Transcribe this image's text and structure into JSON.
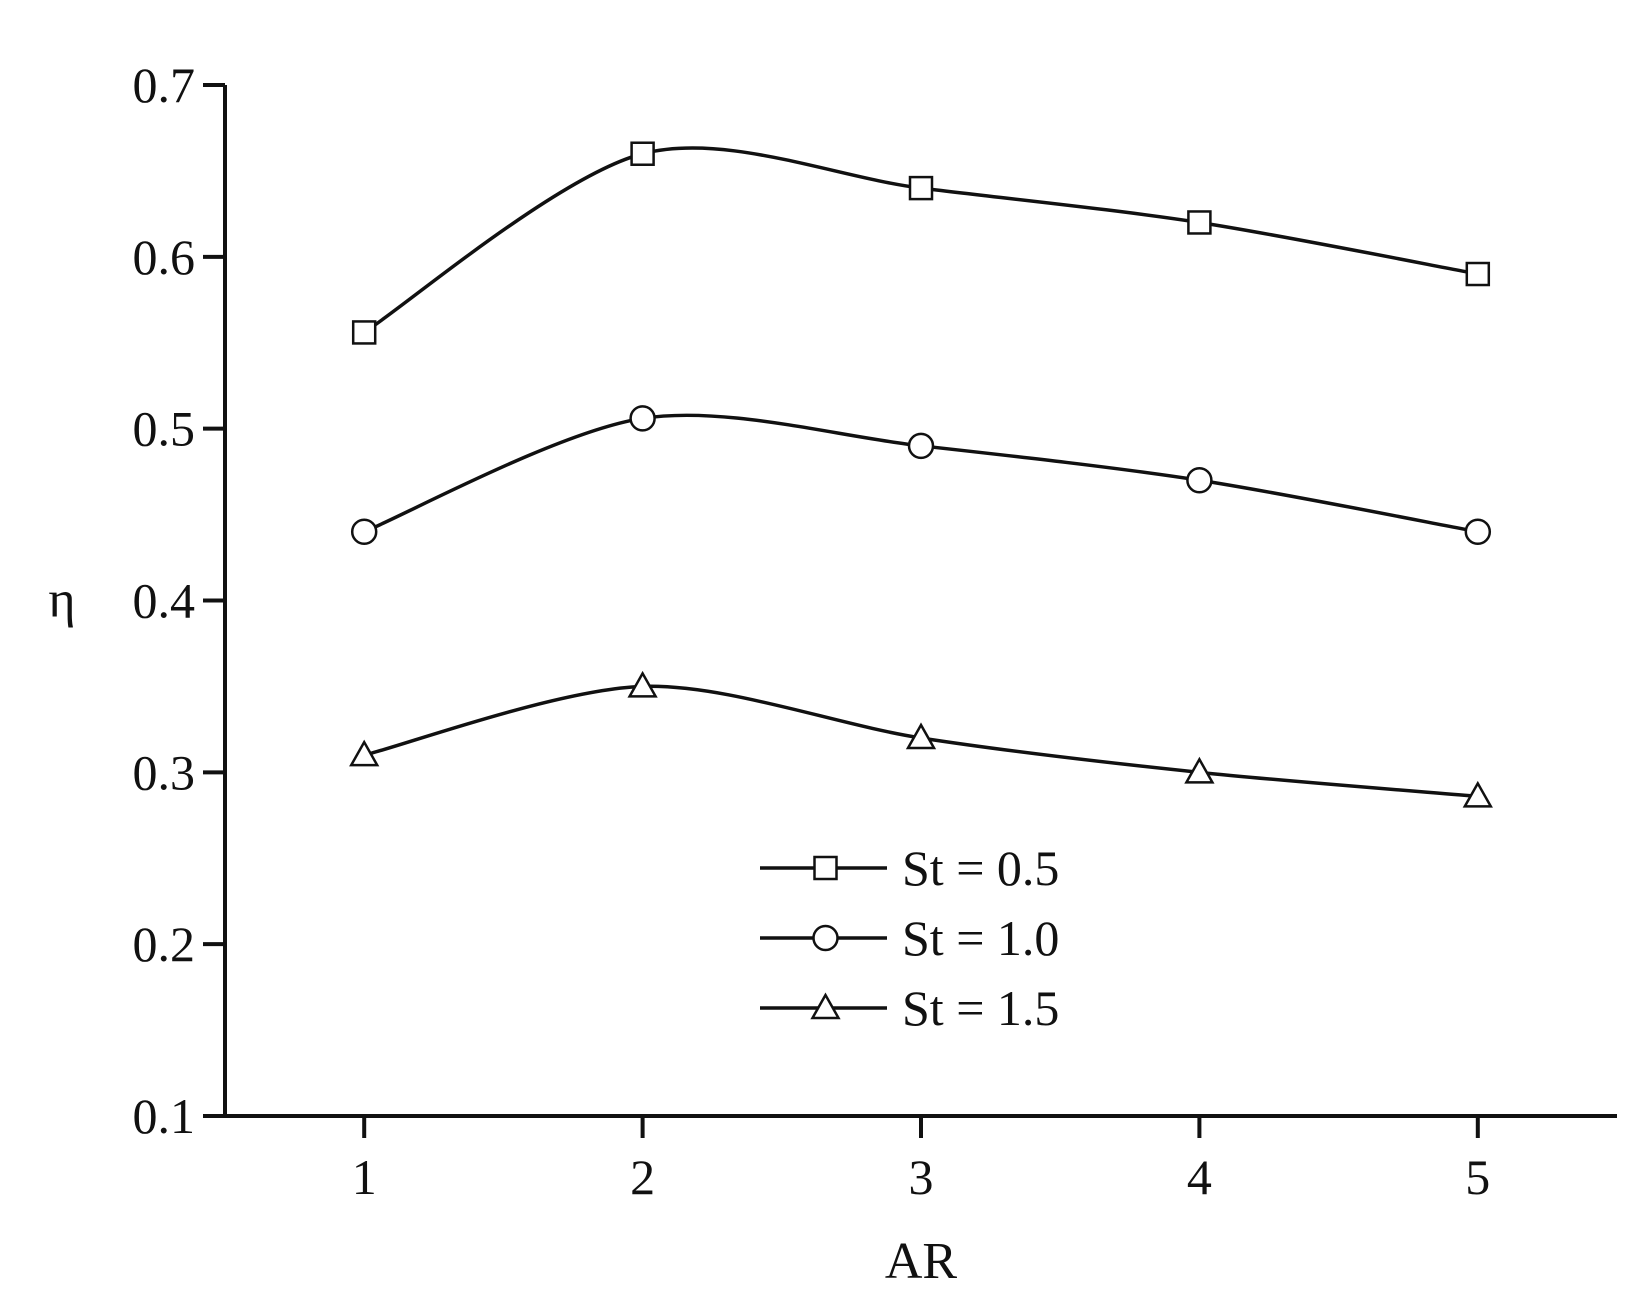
{
  "chart_data": {
    "type": "line",
    "xlabel": "AR",
    "ylabel": "η",
    "x": [
      1,
      2,
      3,
      4,
      5
    ],
    "xticks": [
      "1",
      "2",
      "3",
      "4",
      "5"
    ],
    "yticks": [
      "0.1",
      "0.2",
      "0.3",
      "0.4",
      "0.5",
      "0.6",
      "0.7"
    ],
    "xlim": [
      0.5,
      5.5
    ],
    "ylim": [
      0.1,
      0.7
    ],
    "grid": false,
    "legend_position": "bottom-center",
    "series": [
      {
        "name": "St = 0.5",
        "marker": "square",
        "values": [
          0.556,
          0.66,
          0.64,
          0.62,
          0.59
        ]
      },
      {
        "name": "St = 1.0",
        "marker": "circle",
        "values": [
          0.44,
          0.506,
          0.49,
          0.47,
          0.44
        ]
      },
      {
        "name": "St = 1.5",
        "marker": "triangle",
        "values": [
          0.31,
          0.35,
          0.32,
          0.3,
          0.286
        ]
      }
    ]
  }
}
